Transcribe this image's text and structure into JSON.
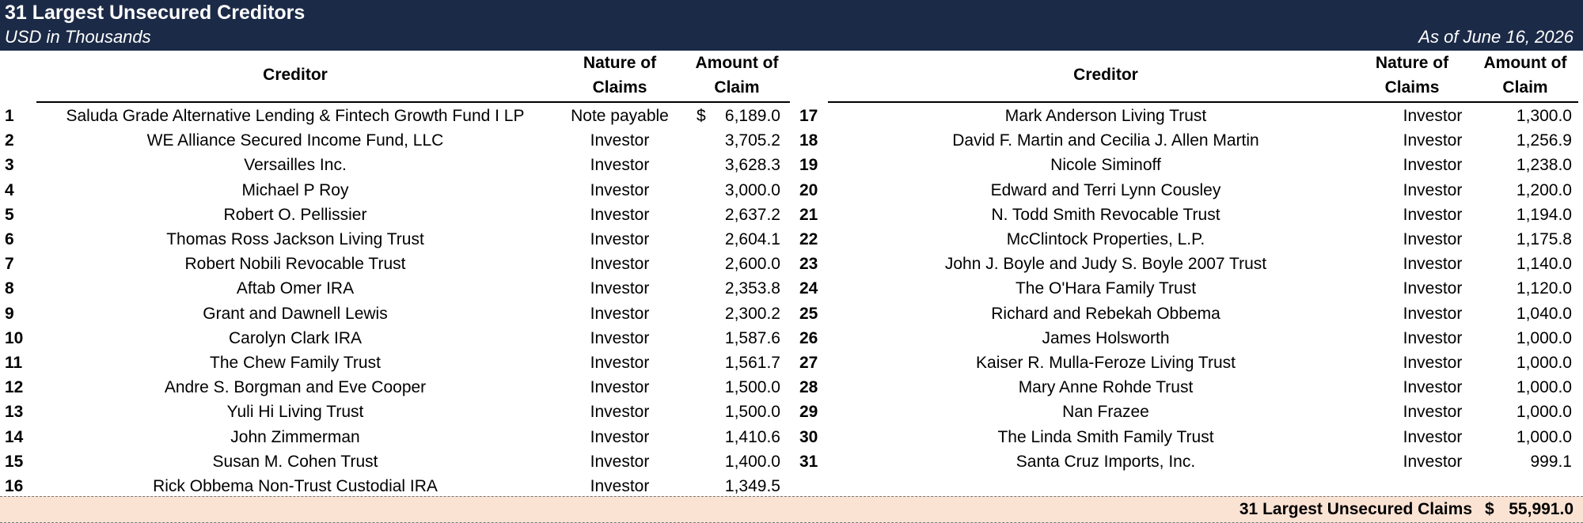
{
  "header": {
    "title": "31 Largest Unsecured Creditors",
    "subtitle": "USD in Thousands",
    "as_of": "As of June 16, 2026"
  },
  "columns": {
    "creditor": "Creditor",
    "nature_line1": "Nature of",
    "nature_line2": "Claims",
    "amount_line1": "Amount of",
    "amount_line2": "Claim"
  },
  "creditors": [
    {
      "num": "1",
      "name": "Saluda Grade Alternative Lending & Fintech Growth Fund I LP",
      "nature": "Note payable",
      "currency": "$",
      "amount": "6,189.0"
    },
    {
      "num": "2",
      "name": "WE Alliance Secured Income Fund, LLC",
      "nature": "Investor",
      "currency": "",
      "amount": "3,705.2"
    },
    {
      "num": "3",
      "name": "Versailles Inc.",
      "nature": "Investor",
      "currency": "",
      "amount": "3,628.3"
    },
    {
      "num": "4",
      "name": "Michael P Roy",
      "nature": "Investor",
      "currency": "",
      "amount": "3,000.0"
    },
    {
      "num": "5",
      "name": "Robert O. Pellissier",
      "nature": "Investor",
      "currency": "",
      "amount": "2,637.2"
    },
    {
      "num": "6",
      "name": "Thomas Ross Jackson Living Trust",
      "nature": "Investor",
      "currency": "",
      "amount": "2,604.1"
    },
    {
      "num": "7",
      "name": "Robert Nobili Revocable Trust",
      "nature": "Investor",
      "currency": "",
      "amount": "2,600.0"
    },
    {
      "num": "8",
      "name": "Aftab Omer IRA",
      "nature": "Investor",
      "currency": "",
      "amount": "2,353.8"
    },
    {
      "num": "9",
      "name": "Grant and Dawnell Lewis",
      "nature": "Investor",
      "currency": "",
      "amount": "2,300.2"
    },
    {
      "num": "10",
      "name": "Carolyn Clark IRA",
      "nature": "Investor",
      "currency": "",
      "amount": "1,587.6"
    },
    {
      "num": "11",
      "name": "The Chew Family Trust",
      "nature": "Investor",
      "currency": "",
      "amount": "1,561.7"
    },
    {
      "num": "12",
      "name": "Andre S. Borgman and Eve Cooper",
      "nature": "Investor",
      "currency": "",
      "amount": "1,500.0"
    },
    {
      "num": "13",
      "name": "Yuli Hi Living Trust",
      "nature": "Investor",
      "currency": "",
      "amount": "1,500.0"
    },
    {
      "num": "14",
      "name": "John Zimmerman",
      "nature": "Investor",
      "currency": "",
      "amount": "1,410.6"
    },
    {
      "num": "15",
      "name": "Susan M. Cohen Trust",
      "nature": "Investor",
      "currency": "",
      "amount": "1,400.0"
    },
    {
      "num": "16",
      "name": "Rick Obbema Non-Trust Custodial IRA",
      "nature": "Investor",
      "currency": "",
      "amount": "1,349.5"
    },
    {
      "num": "17",
      "name": "Mark Anderson Living Trust",
      "nature": "Investor",
      "currency": "",
      "amount": "1,300.0"
    },
    {
      "num": "18",
      "name": "David F. Martin and Cecilia J. Allen Martin",
      "nature": "Investor",
      "currency": "",
      "amount": "1,256.9"
    },
    {
      "num": "19",
      "name": "Nicole Siminoff",
      "nature": "Investor",
      "currency": "",
      "amount": "1,238.0"
    },
    {
      "num": "20",
      "name": "Edward and Terri Lynn Cousley",
      "nature": "Investor",
      "currency": "",
      "amount": "1,200.0"
    },
    {
      "num": "21",
      "name": "N. Todd Smith Revocable Trust",
      "nature": "Investor",
      "currency": "",
      "amount": "1,194.0"
    },
    {
      "num": "22",
      "name": "McClintock Properties, L.P.",
      "nature": "Investor",
      "currency": "",
      "amount": "1,175.8"
    },
    {
      "num": "23",
      "name": "John J. Boyle and Judy S. Boyle 2007 Trust",
      "nature": "Investor",
      "currency": "",
      "amount": "1,140.0"
    },
    {
      "num": "24",
      "name": "The O'Hara Family Trust",
      "nature": "Investor",
      "currency": "",
      "amount": "1,120.0"
    },
    {
      "num": "25",
      "name": "Richard and Rebekah Obbema",
      "nature": "Investor",
      "currency": "",
      "amount": "1,040.0"
    },
    {
      "num": "26",
      "name": "James Holsworth",
      "nature": "Investor",
      "currency": "",
      "amount": "1,000.0"
    },
    {
      "num": "27",
      "name": "Kaiser R. Mulla-Feroze Living Trust",
      "nature": "Investor",
      "currency": "",
      "amount": "1,000.0"
    },
    {
      "num": "28",
      "name": "Mary Anne Rohde Trust",
      "nature": "Investor",
      "currency": "",
      "amount": "1,000.0"
    },
    {
      "num": "29",
      "name": "Nan Frazee",
      "nature": "Investor",
      "currency": "",
      "amount": "1,000.0"
    },
    {
      "num": "30",
      "name": "The Linda Smith Family Trust",
      "nature": "Investor",
      "currency": "",
      "amount": "1,000.0"
    },
    {
      "num": "31",
      "name": "Santa Cruz Imports, Inc.",
      "nature": "Investor",
      "currency": "",
      "amount": "999.1"
    }
  ],
  "total": {
    "label": "31 Largest Unsecured Claims",
    "currency": "$",
    "amount": "55,991.0"
  },
  "colors": {
    "title_bar": "#1b2a47",
    "total_band": "#fbe3d4"
  }
}
